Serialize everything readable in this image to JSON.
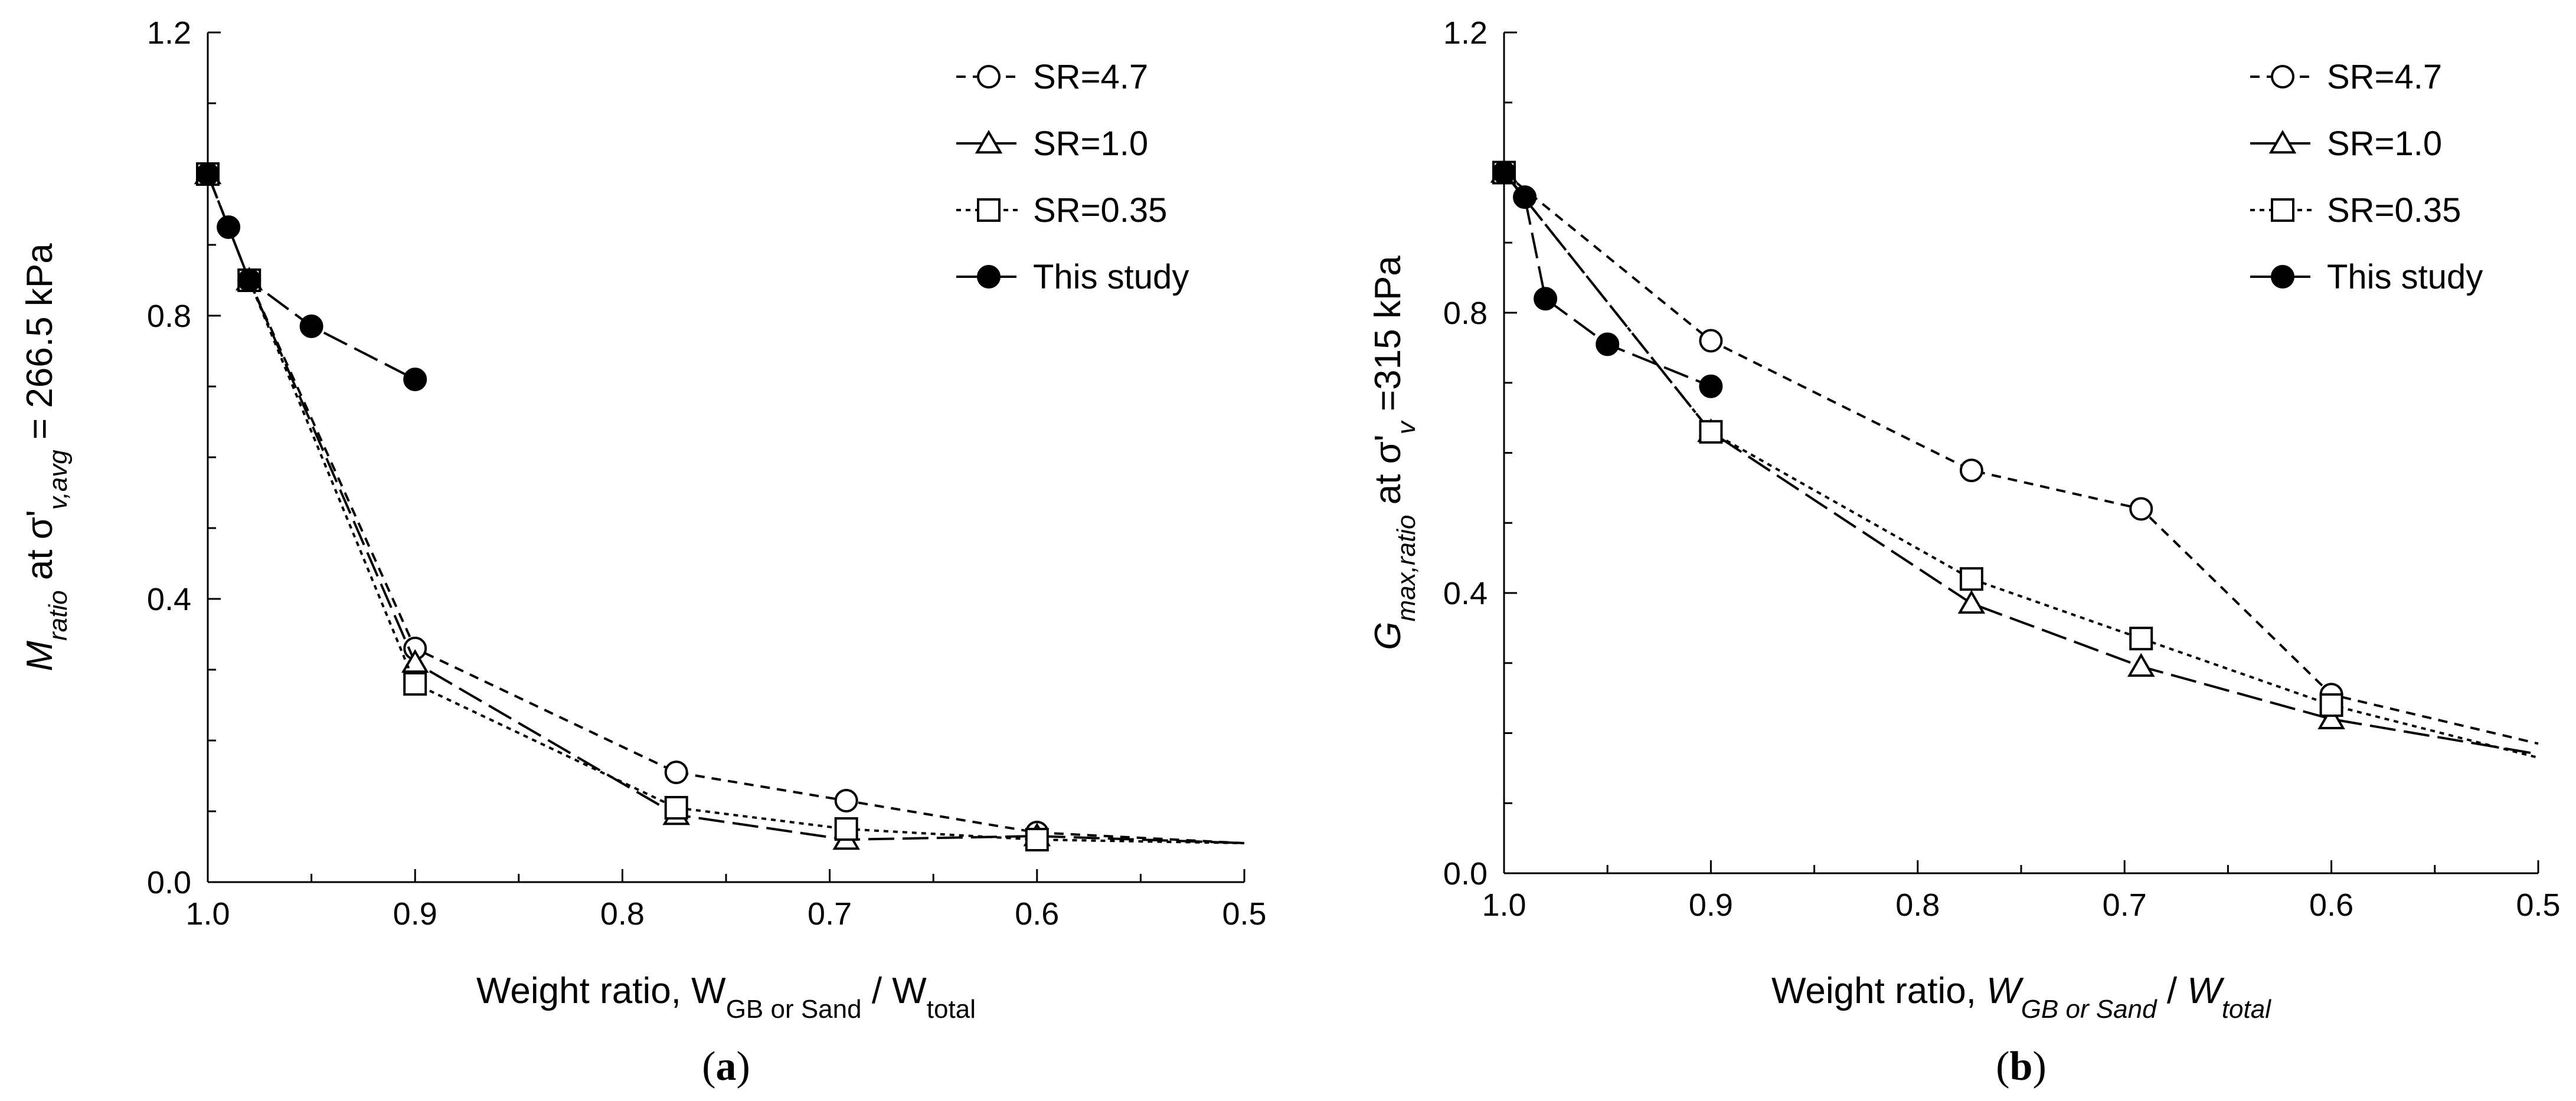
{
  "chart_data": [
    {
      "type": "line",
      "panel_label": "a",
      "xlabel": {
        "prefix": "Weight ratio, W",
        "sub1": "GB or Sand",
        "mid": " / W",
        "sub2": "total"
      },
      "ylabel": {
        "sym": "M",
        "sub": "ratio",
        "mid": " at σ'",
        "sub2": "v,avg",
        "suffix": " = 266.5 kPa"
      },
      "xlim": [
        1.0,
        0.5
      ],
      "ylim": [
        0.0,
        1.2
      ],
      "xticks": [
        "1.0",
        "0.9",
        "0.8",
        "0.7",
        "0.6",
        "0.5"
      ],
      "yticks": [
        "0.0",
        "0.4",
        "0.8",
        "1.2"
      ],
      "xtick_values": [
        1.0,
        0.9,
        0.8,
        0.7,
        0.6,
        0.5
      ],
      "ytick_values": [
        0.0,
        0.4,
        0.8,
        1.2
      ],
      "legend_position": "top-right",
      "series": [
        {
          "name": "SR=4.7",
          "marker": "circle",
          "dash": "short",
          "x": [
            1.0,
            0.98,
            0.9,
            0.774,
            0.692,
            0.6,
            0.5
          ],
          "y": [
            1.0,
            0.85,
            0.33,
            0.155,
            0.115,
            0.07,
            0.055
          ],
          "markers_from": 0
        },
        {
          "name": "SR=1.0",
          "marker": "triangle",
          "dash": "long",
          "x": [
            1.0,
            0.98,
            0.9,
            0.774,
            0.692,
            0.6,
            0.5
          ],
          "y": [
            1.0,
            0.85,
            0.31,
            0.095,
            0.06,
            0.065,
            0.055
          ],
          "markers_from": 0
        },
        {
          "name": "SR=0.35",
          "marker": "square",
          "dash": "dot",
          "x": [
            1.0,
            0.98,
            0.9,
            0.774,
            0.692,
            0.6,
            0.5
          ],
          "y": [
            1.0,
            0.85,
            0.28,
            0.105,
            0.075,
            0.06,
            0.055
          ],
          "markers_from": 0
        },
        {
          "name": "This study",
          "marker": "filled-circle",
          "dash": "long",
          "x": [
            1.0,
            0.99,
            0.98,
            0.95,
            0.9
          ],
          "y": [
            1.0,
            0.925,
            0.85,
            0.785,
            0.71
          ],
          "markers_from": 0
        }
      ]
    },
    {
      "type": "line",
      "panel_label": "b",
      "xlabel": {
        "prefix": "Weight ratio, ",
        "sym1": "W",
        "sub1": "GB or Sand",
        "mid": " / ",
        "sym2": "W",
        "sub2": "total"
      },
      "ylabel": {
        "sym": "G",
        "sub": "max,ratio",
        "mid": " at σ'",
        "sub2": "v",
        "suffix": " =315 kPa"
      },
      "xlim": [
        1.0,
        0.5
      ],
      "ylim": [
        0.0,
        1.2
      ],
      "xticks": [
        "1.0",
        "0.9",
        "0.8",
        "0.7",
        "0.6",
        "0.5"
      ],
      "yticks": [
        "0.0",
        "0.4",
        "0.8",
        "1.2"
      ],
      "xtick_values": [
        1.0,
        0.9,
        0.8,
        0.7,
        0.6,
        0.5
      ],
      "ytick_values": [
        0.0,
        0.4,
        0.8,
        1.2
      ],
      "legend_position": "top-right",
      "series": [
        {
          "name": "SR=4.7",
          "marker": "circle",
          "dash": "short",
          "x": [
            1.0,
            0.9,
            0.774,
            0.692,
            0.6,
            0.5
          ],
          "y": [
            1.0,
            0.76,
            0.575,
            0.52,
            0.255,
            0.185
          ],
          "markers_from": 0
        },
        {
          "name": "SR=1.0",
          "marker": "triangle",
          "dash": "long",
          "x": [
            1.0,
            0.9,
            0.774,
            0.692,
            0.6,
            0.5
          ],
          "y": [
            1.0,
            0.63,
            0.385,
            0.295,
            0.22,
            0.17
          ],
          "markers_from": 0
        },
        {
          "name": "SR=0.35",
          "marker": "square",
          "dash": "dot",
          "x": [
            1.0,
            0.9,
            0.774,
            0.692,
            0.6,
            0.5
          ],
          "y": [
            1.0,
            0.63,
            0.42,
            0.335,
            0.24,
            0.165
          ],
          "markers_from": 0
        },
        {
          "name": "This study",
          "marker": "filled-circle",
          "dash": "long",
          "x": [
            1.0,
            0.99,
            0.98,
            0.95,
            0.9
          ],
          "y": [
            1.0,
            0.965,
            0.82,
            0.755,
            0.695
          ],
          "markers_from": 0
        }
      ]
    }
  ]
}
